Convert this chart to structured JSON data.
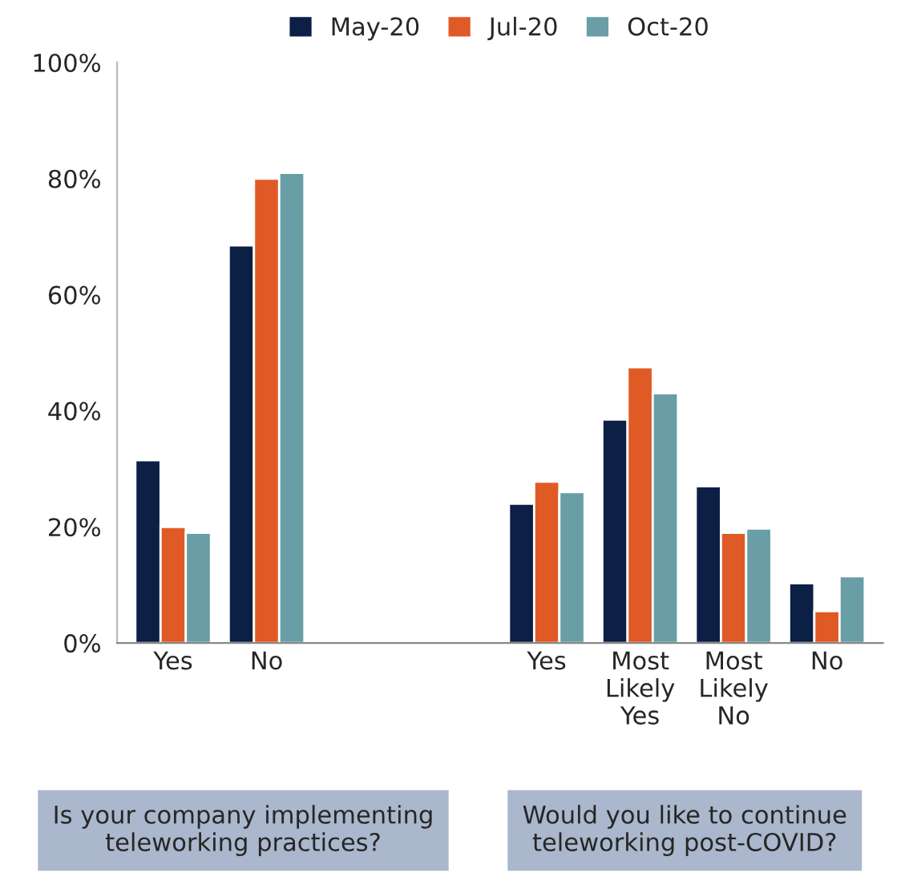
{
  "chart_data": {
    "type": "bar",
    "categories": [
      "Yes",
      "No",
      null,
      null,
      "Yes",
      "Most\nLikely\nYes",
      "Most\nLikely\nNo",
      "No"
    ],
    "series": [
      {
        "name": "May-20",
        "color": "#0c1f44",
        "values": [
          31.5,
          68.5,
          null,
          null,
          24,
          38.5,
          27,
          10.3
        ]
      },
      {
        "name": "Jul-20",
        "color": "#e05a26",
        "values": [
          20,
          80,
          null,
          null,
          27.8,
          47.5,
          19,
          5.5
        ]
      },
      {
        "name": "Oct-20",
        "color": "#6a9ea6",
        "values": [
          19,
          81,
          null,
          null,
          26,
          43,
          19.7,
          11.5
        ]
      }
    ],
    "ylim": [
      0,
      100
    ],
    "yticks": [
      {
        "value": 0,
        "label": "0%"
      },
      {
        "value": 20,
        "label": "20%"
      },
      {
        "value": 40,
        "label": "40%"
      },
      {
        "value": 60,
        "label": "60%"
      },
      {
        "value": 80,
        "label": "80%"
      },
      {
        "value": 100,
        "label": "100%"
      }
    ],
    "grid": false,
    "legend": "top",
    "annotations": [
      "Is your company implementing teleworking practices?",
      "Would you like to continue teleworking post-COVID?"
    ]
  }
}
